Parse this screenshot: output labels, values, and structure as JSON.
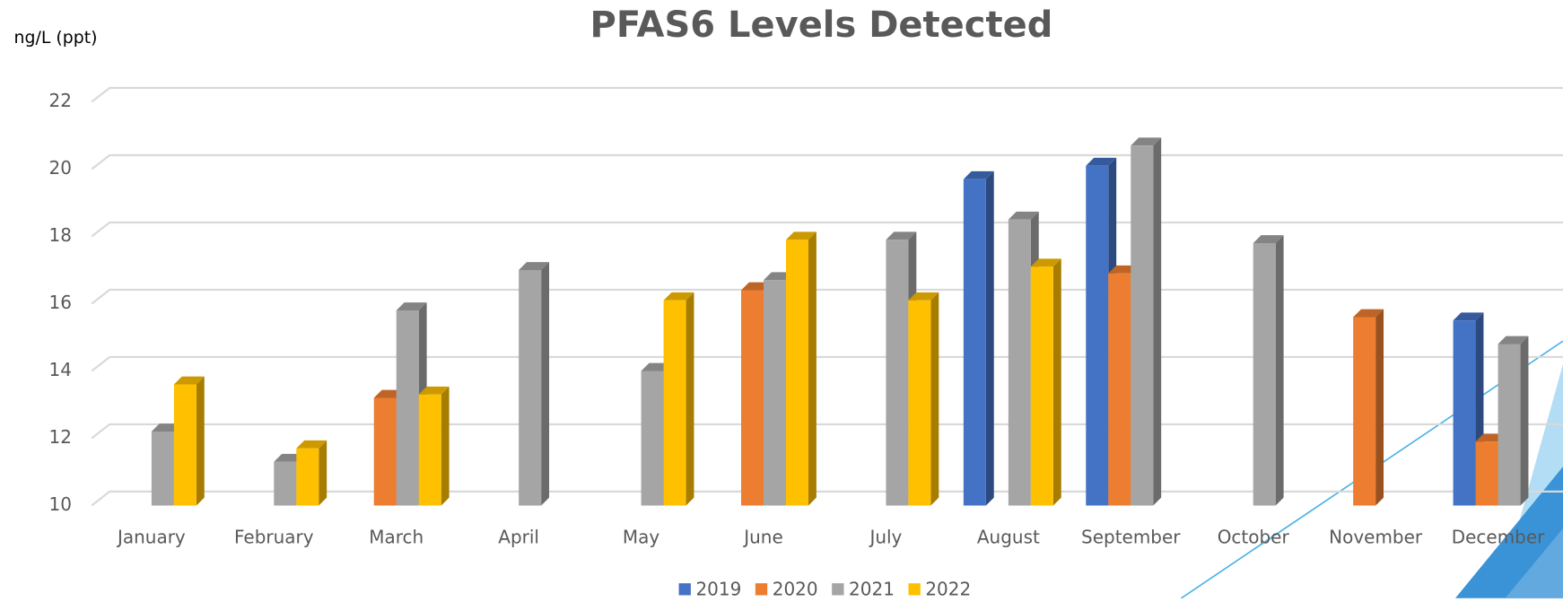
{
  "chart_data": {
    "type": "bar",
    "title": "PFAS6 Levels Detected",
    "y_label": "ng/L (ppt)",
    "categories": [
      "January",
      "February",
      "March",
      "April",
      "May",
      "June",
      "July",
      "August",
      "September",
      "October",
      "November",
      "December"
    ],
    "series": [
      {
        "name": "2019",
        "color": "#4472c4",
        "values": [
          null,
          null,
          null,
          null,
          null,
          null,
          null,
          19.7,
          20.1,
          null,
          null,
          15.5
        ]
      },
      {
        "name": "2020",
        "color": "#ed7d31",
        "values": [
          null,
          null,
          13.2,
          null,
          null,
          16.4,
          null,
          null,
          16.9,
          null,
          15.6,
          11.9
        ]
      },
      {
        "name": "2021",
        "color": "#a5a5a5",
        "values": [
          12.2,
          11.3,
          15.8,
          17.0,
          14.0,
          16.7,
          17.9,
          18.5,
          20.7,
          17.8,
          null,
          14.8
        ]
      },
      {
        "name": "2022",
        "color": "#ffc000",
        "values": [
          13.6,
          11.7,
          13.3,
          null,
          16.1,
          17.9,
          16.1,
          17.1,
          null,
          null,
          null,
          null
        ]
      }
    ],
    "ylim": [
      10,
      22
    ],
    "yticks": [
      10,
      12,
      14,
      16,
      18,
      20,
      22
    ],
    "grid": true,
    "legend": "bottom"
  }
}
